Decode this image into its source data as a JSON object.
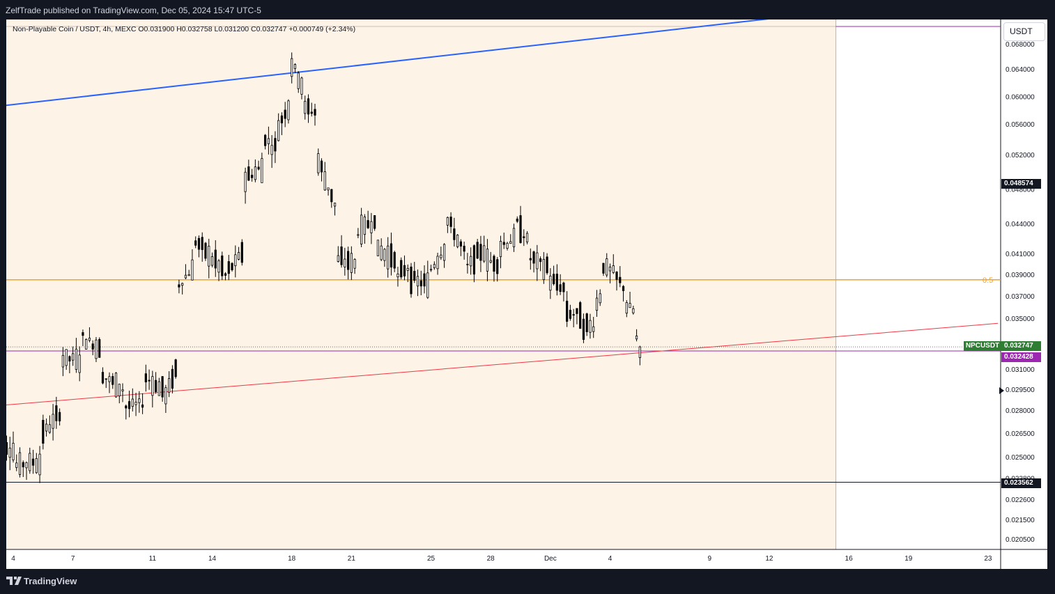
{
  "header": {
    "published": "ZelfTrade published on TradingView.com, Dec 05, 2024 15:47 UTC-5"
  },
  "legend": {
    "symbol_line": "Non-Playable Coin / USDT, 4h, MEXC  O0.031900  H0.032758  L0.031200  C0.032747  +0.000749 (+2.34%)"
  },
  "currency_button": "USDT",
  "footer": {
    "brand": "TradingView"
  },
  "colors": {
    "up_candle": "#ffffff",
    "down_candle": "#000000",
    "background_shade": "#fdf3e6",
    "trend_blue": "#2962ff",
    "trend_red": "#f23645",
    "fib_orange": "#f6a11a",
    "purple": "#9c27b0",
    "green_tag": "#2e7d32"
  },
  "chart_data": {
    "type": "candlestick",
    "symbol": "NPCUSDT",
    "interval": "4h",
    "exchange": "MEXC",
    "last_bar": {
      "open": 0.0319,
      "high": 0.032758,
      "low": 0.0312,
      "close": 0.032747,
      "change": 0.000749,
      "change_pct": 2.34
    },
    "y_ticks": [
      "0.068000",
      "0.064000",
      "0.060000",
      "0.056000",
      "0.052000",
      "0.048000",
      "0.044000",
      "0.041000",
      "0.039000",
      "0.037000",
      "0.035000",
      "0.031000",
      "0.029500",
      "0.028000",
      "0.026500",
      "0.025000",
      "0.023800",
      "0.022600",
      "0.021500",
      "0.020500"
    ],
    "y_tick_values": [
      0.068,
      0.064,
      0.06,
      0.056,
      0.052,
      0.048,
      0.044,
      0.041,
      0.039,
      0.037,
      0.035,
      0.031,
      0.0295,
      0.028,
      0.0265,
      0.025,
      0.0238,
      0.0226,
      0.0215,
      0.0205
    ],
    "x_ticks": [
      "4",
      "7",
      "11",
      "14",
      "18",
      "21",
      "25",
      "28",
      "Dec",
      "4",
      "9",
      "12",
      "16",
      "19",
      "23"
    ],
    "x_tick_days": [
      4,
      7,
      11,
      14,
      18,
      21,
      25,
      28,
      31,
      34,
      39,
      42,
      46,
      49,
      53
    ],
    "price_labels": {
      "last_price_symbol": "NPCUSDT",
      "last_price": "0.032747",
      "purple_level": "0.032428",
      "upper_level": "0.048574",
      "lower_level": "0.023562"
    },
    "horizontal_levels": [
      {
        "name": "fib-0.5",
        "label": "0.5",
        "price": 0.0385,
        "color": "#f6a11a"
      },
      {
        "name": "purple-level",
        "price": 0.032428,
        "color": "#9c27b0"
      },
      {
        "name": "low-level",
        "price": 0.023562,
        "color": "#131722"
      }
    ],
    "trendlines": [
      {
        "name": "blue-resistance",
        "color": "#2962ff",
        "from": {
          "day": 3.0,
          "price": 0.0585
        },
        "to": {
          "day": 44.2,
          "price": 0.0728
        }
      },
      {
        "name": "red-support",
        "color": "#f23645",
        "from": {
          "day": 3.0,
          "price": 0.0283
        },
        "to": {
          "day": 53.5,
          "price": 0.0346
        }
      }
    ],
    "anchor_points": [
      {
        "day": 3.0,
        "open": 0.0265,
        "close": 0.0258
      },
      {
        "day": 4.0,
        "open": 0.0255,
        "close": 0.0245
      },
      {
        "day": 5.5,
        "open": 0.0248,
        "close": 0.0265
      },
      {
        "day": 6.5,
        "open": 0.028,
        "close": 0.0318
      },
      {
        "day": 7.5,
        "open": 0.0318,
        "close": 0.0335
      },
      {
        "day": 8.5,
        "open": 0.0325,
        "close": 0.0305
      },
      {
        "day": 9.5,
        "open": 0.0295,
        "close": 0.0282
      },
      {
        "day": 10.5,
        "open": 0.0285,
        "close": 0.0305
      },
      {
        "day": 11.5,
        "open": 0.0295,
        "close": 0.0285
      },
      {
        "day": 12.2,
        "open": 0.031,
        "close": 0.0378
      },
      {
        "day": 13.0,
        "open": 0.0395,
        "close": 0.0425
      },
      {
        "day": 14.5,
        "open": 0.0395,
        "close": 0.0385
      },
      {
        "day": 15.5,
        "open": 0.041,
        "close": 0.049
      },
      {
        "day": 16.5,
        "open": 0.0505,
        "close": 0.0545
      },
      {
        "day": 17.3,
        "open": 0.0525,
        "close": 0.0555
      },
      {
        "day": 17.9,
        "open": 0.059,
        "close": 0.0655
      },
      {
        "day": 18.5,
        "open": 0.062,
        "close": 0.0585
      },
      {
        "day": 19.3,
        "open": 0.0575,
        "close": 0.0515
      },
      {
        "day": 20.2,
        "open": 0.046,
        "close": 0.0405
      },
      {
        "day": 21.2,
        "open": 0.04,
        "close": 0.043
      },
      {
        "day": 22.2,
        "open": 0.0445,
        "close": 0.0415
      },
      {
        "day": 23.2,
        "open": 0.0405,
        "close": 0.0385
      },
      {
        "day": 24.0,
        "open": 0.04,
        "close": 0.0385
      },
      {
        "day": 25.0,
        "open": 0.038,
        "close": 0.0395
      },
      {
        "day": 25.8,
        "open": 0.042,
        "close": 0.0445
      },
      {
        "day": 26.7,
        "open": 0.041,
        "close": 0.0395
      },
      {
        "day": 27.7,
        "open": 0.0415,
        "close": 0.0405
      },
      {
        "day": 28.5,
        "open": 0.0398,
        "close": 0.0418
      },
      {
        "day": 29.2,
        "open": 0.0425,
        "close": 0.0445
      },
      {
        "day": 30.0,
        "open": 0.0418,
        "close": 0.0405
      },
      {
        "day": 31.0,
        "open": 0.0395,
        "close": 0.0385
      },
      {
        "day": 31.8,
        "open": 0.0375,
        "close": 0.0355
      },
      {
        "day": 32.6,
        "open": 0.0352,
        "close": 0.0342
      },
      {
        "day": 33.2,
        "open": 0.0345,
        "close": 0.0358
      },
      {
        "day": 33.6,
        "open": 0.0375,
        "close": 0.0398
      },
      {
        "day": 34.2,
        "open": 0.0392,
        "close": 0.039
      },
      {
        "day": 34.8,
        "open": 0.0375,
        "close": 0.0362
      },
      {
        "day": 35.3,
        "open": 0.0355,
        "close": 0.0335
      },
      {
        "day": 35.6,
        "open": 0.0328,
        "close": 0.0327
      }
    ]
  }
}
